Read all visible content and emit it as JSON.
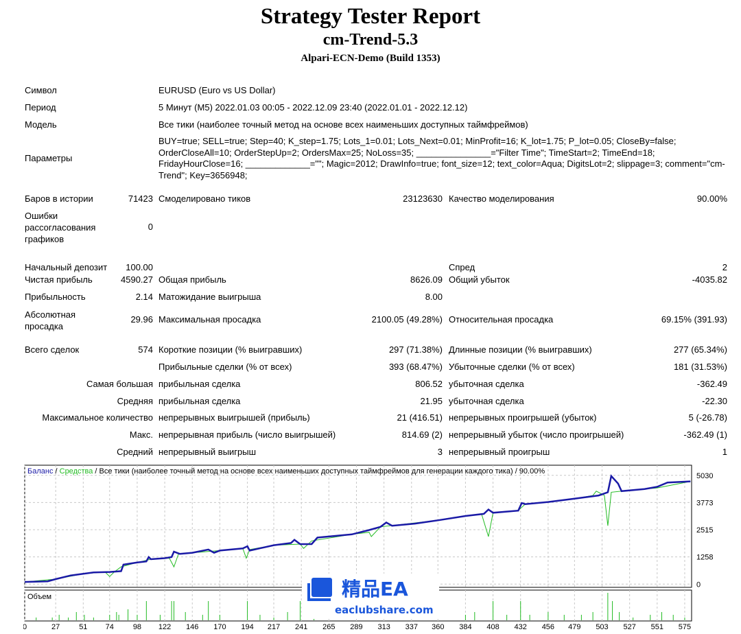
{
  "header": {
    "title": "Strategy Tester Report",
    "expert": "cm-Trend-5.3",
    "server": "Alpari-ECN-Demo (Build 1353)"
  },
  "info": {
    "symbol_label": "Символ",
    "symbol": "EURUSD (Euro vs US Dollar)",
    "period_label": "Период",
    "period": "5 Минут (M5) 2022.01.03 00:05 - 2022.12.09 23:40 (2022.01.01 - 2022.12.12)",
    "model_label": "Модель",
    "model": "Все тики (наиболее точный метод на основе всех наименьших доступных таймфреймов)",
    "params_label": "Параметры",
    "params": "BUY=true; SELL=true; Step=40; K_step=1.75; Lots_1=0.01; Lots_Next=0.01; MinProfit=16; K_lot=1.75; P_lot=0.05; CloseBy=false; OrderCloseAll=10; OrderStepUp=2; OrdersMax=25; NoLoss=35; _______________=\"Filter Time\"; TimeStart=2; TimeEnd=18; FridayHourClose=16; _____________=\"\"; Magic=2012; DrawInfo=true; font_size=12; text_color=Aqua; DigitsLot=2; slippage=3; comment=\"cm-Trend\"; Key=3656948;"
  },
  "rows": [
    {
      "top": 282,
      "l1": "Баров в истории",
      "v1": "71423",
      "l2": "Смоделировано тиков",
      "v2": "23123630",
      "l3": "Качество моделирования",
      "v3": "90.00%"
    },
    {
      "top": 382,
      "l1": "Начальный депозит",
      "v1": "100.00",
      "l2": "",
      "v2": "",
      "l3": "Спред",
      "v3": "2"
    },
    {
      "top": 400,
      "l1": "Чистая прибыль",
      "v1": "4590.27",
      "l2": "Общая прибыль",
      "v2": "8626.09",
      "l3": "Общий убыток",
      "v3": "-4035.82"
    },
    {
      "top": 425,
      "l1": "Прибыльность",
      "v1": "2.14",
      "l2": "Матожидание выигрыша",
      "v2": "8.00",
      "l3": "",
      "v3": ""
    },
    {
      "top": 458,
      "l1": "",
      "v1": "29.96",
      "l2": "Максимальная просадка",
      "v2": "2100.05 (49.28%)",
      "l3": "Относительная просадка",
      "v3": "69.15% (391.93)"
    },
    {
      "top": 502,
      "l1": "Всего сделок",
      "v1": "574",
      "l2": "Короткие позиции (% выигравших)",
      "v2": "297 (71.38%)",
      "l3": "Длинные позиции (% выигравших)",
      "v3": "277 (65.34%)"
    },
    {
      "top": 527,
      "l1": "",
      "v1": "",
      "l2": "Прибыльные сделки (% от всех)",
      "v2": "393 (68.47%)",
      "l3": "Убыточные сделки (% от всех)",
      "v3": "181 (31.53%)"
    },
    {
      "top": 552,
      "lr": "Самая большая",
      "l2": "прибыльная сделка",
      "v2": "806.52",
      "l3": "убыточная сделка",
      "v3": "-362.49"
    },
    {
      "top": 577,
      "lr": "Средняя",
      "l2": "прибыльная сделка",
      "v2": "21.95",
      "l3": "убыточная сделка",
      "v3": "-22.30"
    },
    {
      "top": 601,
      "lr": "Максимальное количество",
      "l2": "непрерывных выигрышей (прибыль)",
      "v2": "21 (416.51)",
      "l3": "непрерывных проигрышей (убыток)",
      "v3": "5 (-26.78)"
    },
    {
      "top": 626,
      "lr": "Макс.",
      "l2": "непрерывная прибыль (число выигрышей)",
      "v2": "814.69 (2)",
      "l3": "непрерывный убыток (число проигрышей)",
      "v3": "-362.49 (1)"
    },
    {
      "top": 651,
      "lr": "Средний",
      "l2": "непрерывный выигрыш",
      "v2": "3",
      "l3": "непрерывный проигрыш",
      "v3": "1"
    }
  ],
  "multiline": {
    "errors": [
      "Ошибки",
      "рассогласования",
      "графиков"
    ],
    "errors_value": "0",
    "abs_dd": [
      "Абсолютная",
      "просадка"
    ]
  },
  "chart_data": {
    "type": "line",
    "legend": {
      "balance": "Баланс",
      "equity": "Средства",
      "rest": "/ Все тики (наиболее точный метод на основе всех наименьших доступных таймфреймов для генерации каждого тика) / 90.00%"
    },
    "volume_label": "Объем",
    "colors": {
      "balance": "#1a1aa6",
      "equity": "#22bb22",
      "volume": "#22bb22",
      "grid": "#c8c8c8"
    },
    "grid": true,
    "xlim": [
      0,
      581
    ],
    "ylim": [
      -150,
      5500
    ],
    "x_ticks": [
      0,
      27,
      51,
      74,
      98,
      122,
      146,
      170,
      194,
      217,
      241,
      265,
      289,
      313,
      337,
      360,
      384,
      408,
      432,
      456,
      479,
      503,
      527,
      551,
      575
    ],
    "y_ticks": [
      0,
      1258,
      2515,
      3773,
      5030
    ],
    "balance": [
      [
        0,
        100
      ],
      [
        20,
        130
      ],
      [
        27,
        230
      ],
      [
        40,
        400
      ],
      [
        51,
        480
      ],
      [
        60,
        540
      ],
      [
        74,
        560
      ],
      [
        84,
        600
      ],
      [
        86,
        900
      ],
      [
        98,
        1000
      ],
      [
        106,
        1050
      ],
      [
        108,
        1250
      ],
      [
        110,
        1150
      ],
      [
        122,
        1200
      ],
      [
        128,
        1250
      ],
      [
        130,
        1500
      ],
      [
        135,
        1400
      ],
      [
        146,
        1450
      ],
      [
        160,
        1600
      ],
      [
        165,
        1450
      ],
      [
        170,
        1550
      ],
      [
        190,
        1650
      ],
      [
        194,
        1750
      ],
      [
        196,
        1550
      ],
      [
        217,
        1800
      ],
      [
        232,
        1900
      ],
      [
        235,
        2050
      ],
      [
        240,
        1850
      ],
      [
        250,
        1850
      ],
      [
        255,
        2150
      ],
      [
        285,
        2300
      ],
      [
        300,
        2500
      ],
      [
        310,
        2650
      ],
      [
        315,
        2850
      ],
      [
        320,
        2700
      ],
      [
        340,
        2800
      ],
      [
        360,
        2950
      ],
      [
        384,
        3150
      ],
      [
        400,
        3250
      ],
      [
        404,
        3450
      ],
      [
        408,
        3300
      ],
      [
        430,
        3400
      ],
      [
        433,
        3750
      ],
      [
        436,
        3700
      ],
      [
        456,
        3800
      ],
      [
        479,
        3950
      ],
      [
        500,
        4100
      ],
      [
        508,
        4250
      ],
      [
        511,
        5000
      ],
      [
        517,
        4650
      ],
      [
        520,
        4300
      ],
      [
        540,
        4400
      ],
      [
        551,
        4500
      ],
      [
        560,
        4700
      ],
      [
        580,
        4750
      ]
    ],
    "equity": [
      [
        0,
        100
      ],
      [
        27,
        230
      ],
      [
        51,
        480
      ],
      [
        70,
        560
      ],
      [
        74,
        350
      ],
      [
        78,
        560
      ],
      [
        84,
        800
      ],
      [
        98,
        1000
      ],
      [
        110,
        1150
      ],
      [
        126,
        1200
      ],
      [
        130,
        800
      ],
      [
        134,
        1400
      ],
      [
        146,
        1450
      ],
      [
        170,
        1550
      ],
      [
        190,
        1650
      ],
      [
        193,
        1200
      ],
      [
        196,
        1600
      ],
      [
        217,
        1800
      ],
      [
        240,
        1850
      ],
      [
        243,
        1650
      ],
      [
        250,
        2000
      ],
      [
        285,
        2300
      ],
      [
        300,
        2400
      ],
      [
        302,
        2200
      ],
      [
        310,
        2650
      ],
      [
        360,
        2950
      ],
      [
        384,
        3150
      ],
      [
        398,
        3250
      ],
      [
        404,
        2200
      ],
      [
        408,
        3300
      ],
      [
        430,
        3400
      ],
      [
        436,
        3700
      ],
      [
        456,
        3800
      ],
      [
        479,
        3950
      ],
      [
        495,
        4100
      ],
      [
        498,
        4300
      ],
      [
        505,
        4100
      ],
      [
        508,
        2700
      ],
      [
        511,
        4250
      ],
      [
        520,
        4300
      ],
      [
        551,
        4450
      ],
      [
        580,
        4750
      ]
    ],
    "volume": [
      [
        10,
        1
      ],
      [
        24,
        1
      ],
      [
        30,
        2
      ],
      [
        38,
        1
      ],
      [
        45,
        3
      ],
      [
        52,
        2
      ],
      [
        60,
        1
      ],
      [
        74,
        2
      ],
      [
        80,
        3
      ],
      [
        82,
        2
      ],
      [
        90,
        4
      ],
      [
        98,
        2
      ],
      [
        106,
        7
      ],
      [
        118,
        2
      ],
      [
        128,
        7
      ],
      [
        130,
        7
      ],
      [
        140,
        3
      ],
      [
        155,
        2
      ],
      [
        160,
        7
      ],
      [
        170,
        2
      ],
      [
        194,
        7
      ],
      [
        205,
        2
      ],
      [
        217,
        1
      ],
      [
        229,
        3
      ],
      [
        240,
        7
      ],
      [
        252,
        2
      ],
      [
        384,
        2
      ],
      [
        392,
        3
      ],
      [
        408,
        7
      ],
      [
        420,
        2
      ],
      [
        432,
        7
      ],
      [
        440,
        2
      ],
      [
        456,
        3
      ],
      [
        470,
        2
      ],
      [
        485,
        2
      ],
      [
        495,
        3
      ],
      [
        508,
        10
      ],
      [
        512,
        7
      ],
      [
        518,
        3
      ],
      [
        530,
        1
      ],
      [
        545,
        2
      ],
      [
        555,
        3
      ],
      [
        565,
        2
      ],
      [
        575,
        1
      ]
    ]
  },
  "watermark": {
    "brand": "精品EA",
    "site": "eaclubshare.com"
  }
}
